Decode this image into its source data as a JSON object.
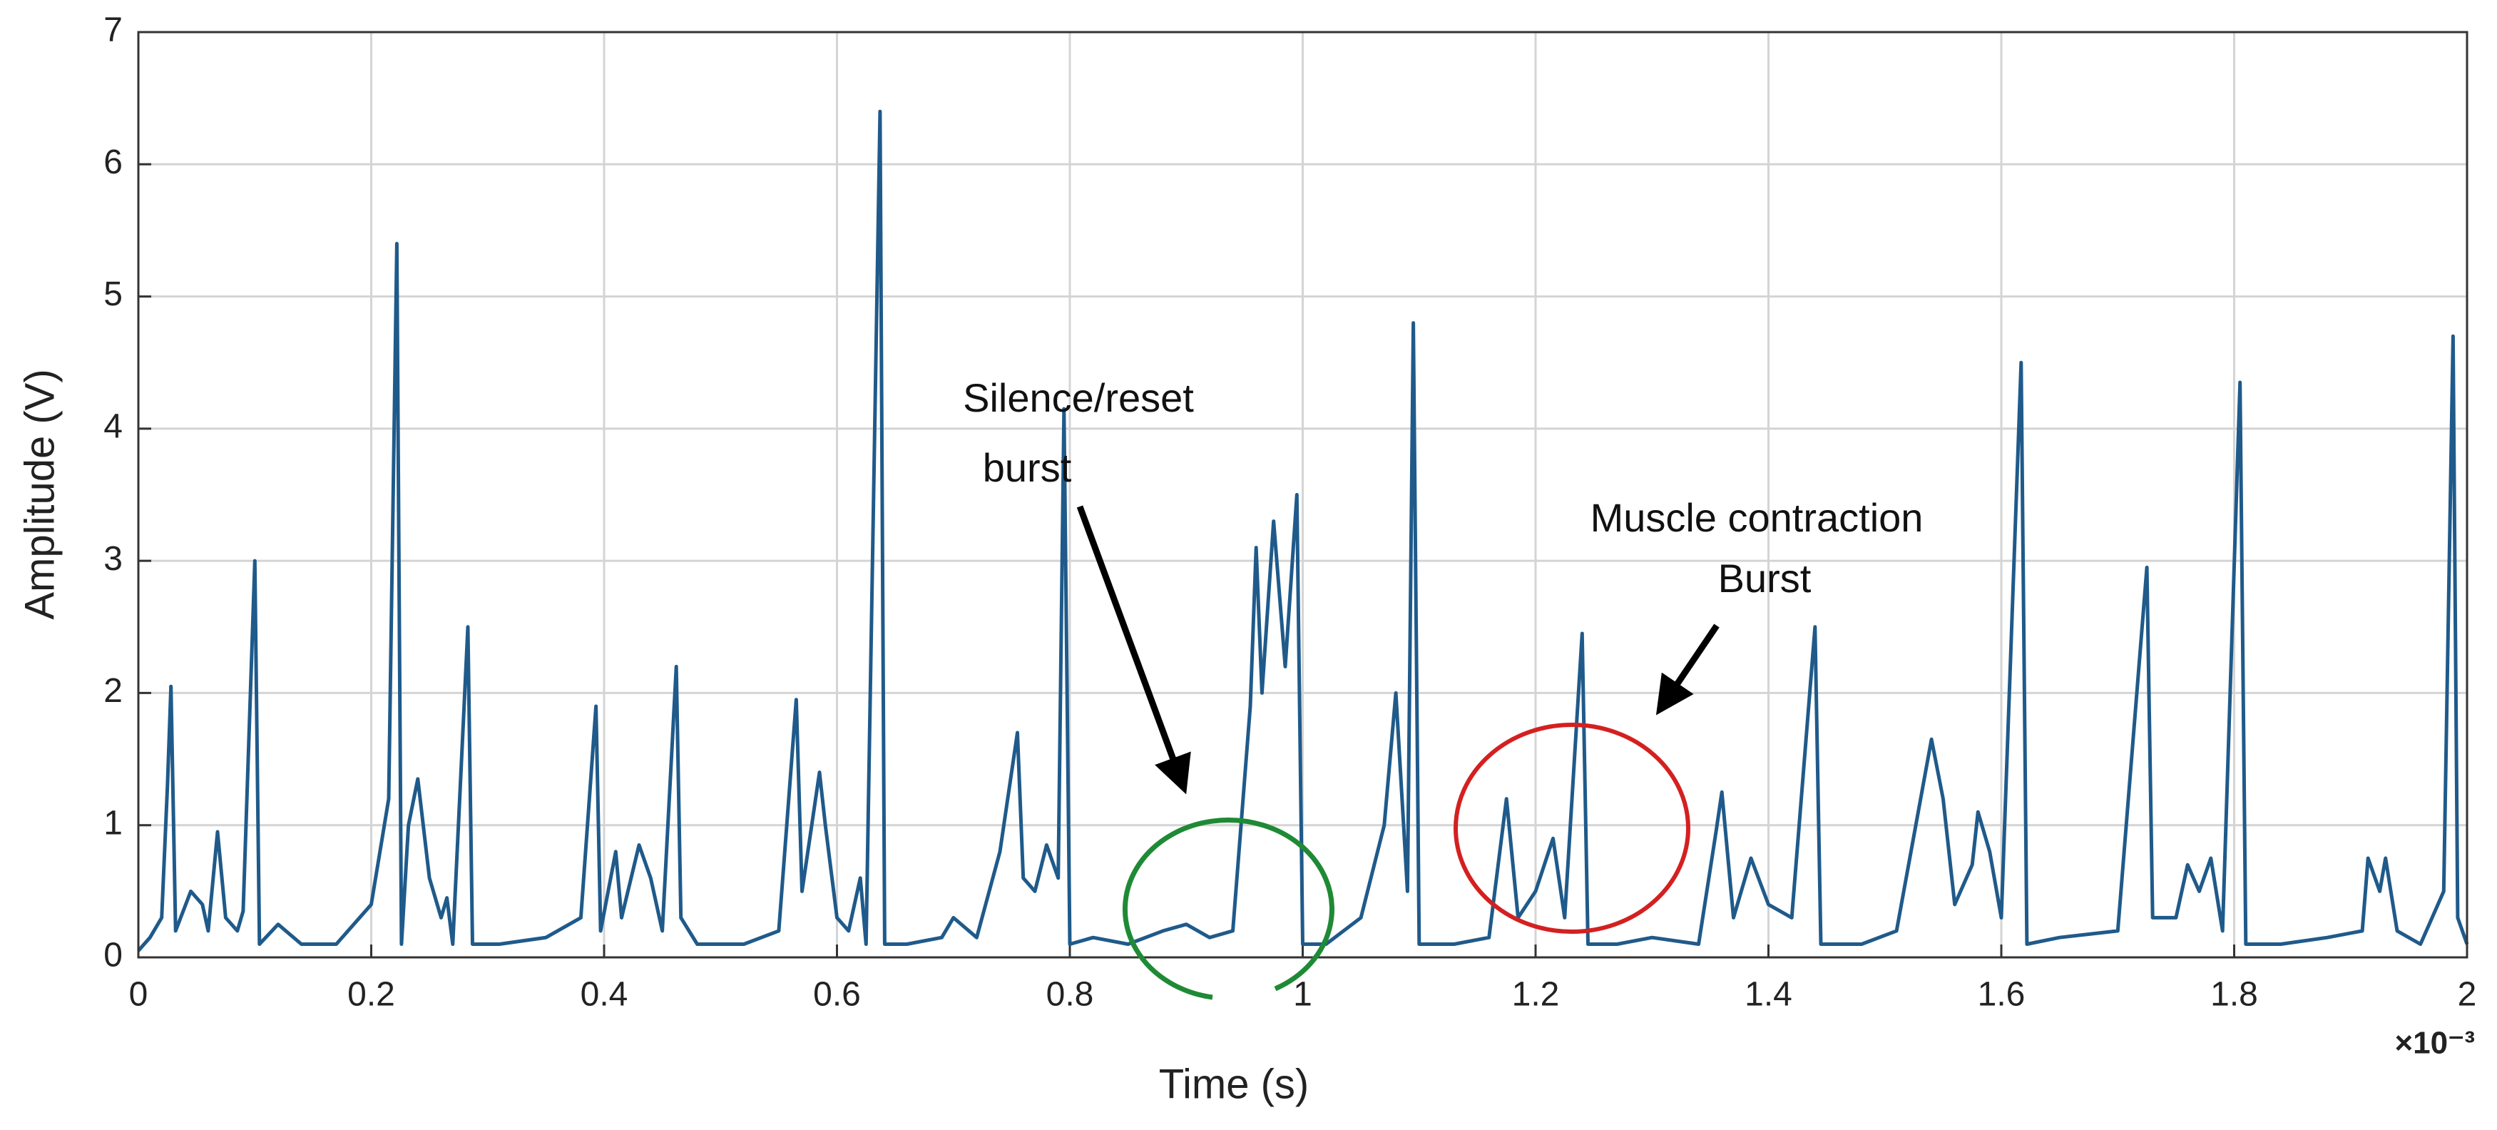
{
  "chart_data": {
    "type": "line",
    "xlabel": "Time (s)",
    "ylabel": "Amplitude (V)",
    "x_multiplier": "×10⁻³",
    "xlim": [
      0,
      2
    ],
    "xticks": [
      0,
      0.2,
      0.4,
      0.6,
      0.8,
      1,
      1.2,
      1.4,
      1.6,
      1.8,
      2
    ],
    "ylim": [
      0,
      7
    ],
    "yticks": [
      0,
      1,
      2,
      3,
      4,
      5,
      6,
      7
    ],
    "grid": true,
    "annotations": [
      {
        "lines": [
          "Silence/reset",
          "burst"
        ]
      },
      {
        "lines": [
          "Muscle contraction",
          "Burst"
        ]
      }
    ],
    "x": [
      0,
      0.01,
      0.02,
      0.025,
      0.028,
      0.032,
      0.045,
      0.055,
      0.06,
      0.068,
      0.075,
      0.085,
      0.09,
      0.1,
      0.104,
      0.12,
      0.14,
      0.17,
      0.2,
      0.215,
      0.222,
      0.226,
      0.232,
      0.24,
      0.25,
      0.26,
      0.265,
      0.27,
      0.283,
      0.287,
      0.31,
      0.35,
      0.38,
      0.393,
      0.397,
      0.41,
      0.415,
      0.43,
      0.44,
      0.45,
      0.462,
      0.466,
      0.48,
      0.52,
      0.55,
      0.565,
      0.57,
      0.585,
      0.59,
      0.6,
      0.61,
      0.62,
      0.625,
      0.637,
      0.641,
      0.66,
      0.69,
      0.7,
      0.72,
      0.74,
      0.755,
      0.76,
      0.77,
      0.78,
      0.79,
      0.795,
      0.8,
      0.82,
      0.85,
      0.88,
      0.9,
      0.92,
      0.94,
      0.955,
      0.96,
      0.965,
      0.975,
      0.985,
      0.995,
      1.0,
      1.02,
      1.05,
      1.07,
      1.08,
      1.09,
      1.095,
      1.1,
      1.13,
      1.16,
      1.175,
      1.185,
      1.2,
      1.215,
      1.225,
      1.24,
      1.245,
      1.27,
      1.3,
      1.34,
      1.355,
      1.36,
      1.37,
      1.385,
      1.4,
      1.42,
      1.44,
      1.445,
      1.48,
      1.51,
      1.54,
      1.55,
      1.56,
      1.575,
      1.58,
      1.59,
      1.6,
      1.617,
      1.622,
      1.65,
      1.7,
      1.725,
      1.73,
      1.75,
      1.76,
      1.77,
      1.78,
      1.79,
      1.805,
      1.81,
      1.84,
      1.88,
      1.91,
      1.915,
      1.925,
      1.93,
      1.94,
      1.96,
      1.98,
      1.988,
      1.992,
      2.0
    ],
    "series": [
      {
        "color": "#1f5a8a",
        "values": [
          0.05,
          0.15,
          0.3,
          1.3,
          2.05,
          0.2,
          0.5,
          0.4,
          0.2,
          0.95,
          0.3,
          0.2,
          0.35,
          3.0,
          0.1,
          0.25,
          0.1,
          0.1,
          0.4,
          1.2,
          5.4,
          0.1,
          1.0,
          1.35,
          0.6,
          0.3,
          0.45,
          0.1,
          2.5,
          0.1,
          0.1,
          0.15,
          0.3,
          1.9,
          0.2,
          0.8,
          0.3,
          0.85,
          0.6,
          0.2,
          2.2,
          0.3,
          0.1,
          0.1,
          0.2,
          1.95,
          0.5,
          1.4,
          1.0,
          0.3,
          0.2,
          0.6,
          0.1,
          6.4,
          0.1,
          0.1,
          0.15,
          0.3,
          0.15,
          0.8,
          1.7,
          0.6,
          0.5,
          0.85,
          0.6,
          4.15,
          0.1,
          0.15,
          0.1,
          0.2,
          0.25,
          0.15,
          0.2,
          1.9,
          3.1,
          2.0,
          3.3,
          2.2,
          3.5,
          0.1,
          0.1,
          0.3,
          1.0,
          2.0,
          0.5,
          4.8,
          0.1,
          0.1,
          0.15,
          1.2,
          0.3,
          0.5,
          0.9,
          0.3,
          2.45,
          0.1,
          0.1,
          0.15,
          0.1,
          0.95,
          1.25,
          0.3,
          0.75,
          0.4,
          0.3,
          2.5,
          0.1,
          0.1,
          0.2,
          1.65,
          1.2,
          0.4,
          0.7,
          1.1,
          0.8,
          0.3,
          4.5,
          0.1,
          0.15,
          0.2,
          2.95,
          0.3,
          0.3,
          0.7,
          0.5,
          0.75,
          0.2,
          4.35,
          0.1,
          0.1,
          0.15,
          0.2,
          0.75,
          0.5,
          0.75,
          0.2,
          0.1,
          0.5,
          4.7,
          0.3,
          0.1
        ]
      }
    ]
  }
}
